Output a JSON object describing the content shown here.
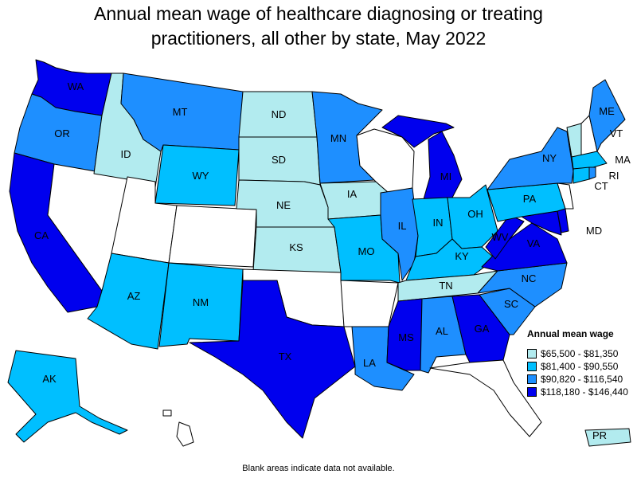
{
  "title_line1": "Annual mean wage of healthcare diagnosing or treating",
  "title_line2": "practitioners, all other by state, May 2022",
  "footnote": "Blank areas indicate data not available.",
  "legend": {
    "title": "Annual mean wage",
    "items": [
      {
        "label": "$65,500 - $81,350",
        "color": "#b2ebef"
      },
      {
        "label": "$81,400 - $90,550",
        "color": "#00bfff"
      },
      {
        "label": "$90,820 - $116,540",
        "color": "#1e8fff"
      },
      {
        "label": "$118,180 - $146,440",
        "color": "#0000ee"
      }
    ]
  },
  "colors": {
    "blank": "#ffffff",
    "c1": "#b2ebef",
    "c2": "#00bfff",
    "c3": "#1e8fff",
    "c4": "#0000ee"
  },
  "states": {
    "WA": "c4",
    "OR": "c3",
    "CA": "c4",
    "ID": "c1",
    "NV": "blank",
    "UT": "blank",
    "AZ": "c2",
    "MT": "c3",
    "WY": "c2",
    "CO": "blank",
    "NM": "c2",
    "ND": "c1",
    "SD": "c1",
    "NE": "c1",
    "KS": "c1",
    "OK": "blank",
    "TX": "c4",
    "MN": "c3",
    "IA": "c1",
    "MO": "c2",
    "AR": "blank",
    "LA": "c3",
    "WI": "blank",
    "IL": "c3",
    "MI": "c4",
    "IN": "c2",
    "OH": "c2",
    "KY": "c2",
    "TN": "c1",
    "MS": "c4",
    "AL": "c3",
    "GA": "c4",
    "FL": "blank",
    "SC": "c3",
    "NC": "c3",
    "VA": "c4",
    "WV": "c4",
    "MD": "c4",
    "DE": "c4",
    "PA": "c2",
    "NY": "c3",
    "NJ": "blank",
    "CT": "c2",
    "RI": "c3",
    "MA": "c2",
    "VT": "c1",
    "NH": "blank",
    "ME": "c3",
    "AK": "c2",
    "HI": "blank",
    "PR": "c1"
  },
  "labels": {
    "WA": "WA",
    "OR": "OR",
    "CA": "CA",
    "ID": "ID",
    "AZ": "AZ",
    "MT": "MT",
    "WY": "WY",
    "NM": "NM",
    "ND": "ND",
    "SD": "SD",
    "NE": "NE",
    "KS": "KS",
    "TX": "TX",
    "MN": "MN",
    "IA": "IA",
    "MO": "MO",
    "LA": "LA",
    "IL": "IL",
    "MI": "MI",
    "IN": "IN",
    "OH": "OH",
    "KY": "KY",
    "TN": "TN",
    "MS": "MS",
    "AL": "AL",
    "GA": "GA",
    "SC": "SC",
    "NC": "NC",
    "VA": "VA",
    "WV": "WV",
    "MD": "MD",
    "PA": "PA",
    "NY": "NY",
    "CT": "CT",
    "RI": "RI",
    "MA": "MA",
    "VT": "VT",
    "ME": "ME",
    "AK": "AK",
    "PR": "PR"
  }
}
